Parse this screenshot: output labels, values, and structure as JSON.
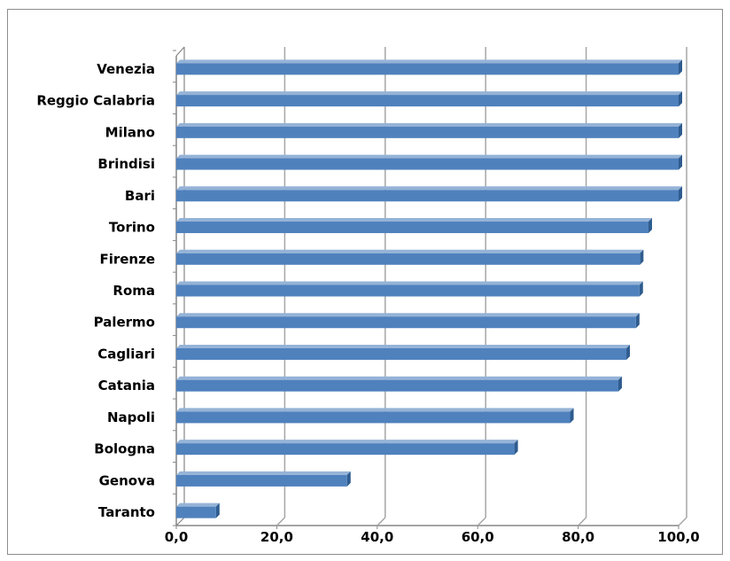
{
  "chart_data": {
    "type": "bar",
    "orientation": "horizontal",
    "title": "",
    "xlabel": "",
    "ylabel": "",
    "categories": [
      "Venezia",
      "Reggio Calabria",
      "Milano",
      "Brindisi",
      "Bari",
      "Torino",
      "Firenze",
      "Roma",
      "Palermo",
      "Cagliari",
      "Catania",
      "Napoli",
      "Bologna",
      "Genova",
      "Taranto"
    ],
    "values": [
      100.0,
      100.0,
      100.0,
      100.0,
      100.0,
      94.0,
      92.3,
      92.2,
      91.5,
      89.6,
      88.0,
      78.4,
      67.3,
      34.0,
      7.9
    ],
    "xlim": [
      0,
      100
    ],
    "xticks": [
      0,
      20,
      40,
      60,
      80,
      100
    ],
    "xtick_labels": [
      "0,0",
      "20,0",
      "40,0",
      "60,0",
      "80,0",
      "100,0"
    ],
    "grid": "vertical",
    "legend": "none",
    "style": "3d-bar",
    "colors": {
      "bar_front": "#4f81bd",
      "bar_top": "#95b3d7",
      "bar_side": "#2f5c8f",
      "gridline": "#a6a6a6",
      "wall": "#868686",
      "frame": "#8c8c8c"
    }
  }
}
